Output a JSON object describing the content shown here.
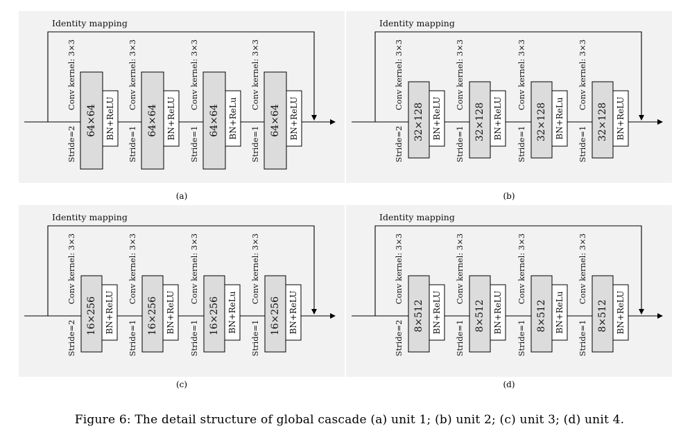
{
  "figure": {
    "caption": "Figure 6: The detail structure of global cascade (a) unit 1; (b) unit 2; (c) unit 3; (d) unit 4.",
    "identity_label": "Identity mapping",
    "conv_label": "Conv kernel: 3×3",
    "panels": [
      {
        "label": "(a)",
        "blocks": [
          {
            "stride": "Stride=2",
            "size": "64×64",
            "bn": "BN+ReLU"
          },
          {
            "stride": "Stride=1",
            "size": "64×64",
            "bn": "BN+ReLU"
          },
          {
            "stride": "Stride=1",
            "size": "64×64",
            "bn": "BN+ReLu"
          },
          {
            "stride": "Stride=1",
            "size": "64×64",
            "bn": "BN+ReLU"
          }
        ]
      },
      {
        "label": "(b)",
        "blocks": [
          {
            "stride": "Stride=2",
            "size": "32×128",
            "bn": "BN+ReLU"
          },
          {
            "stride": "Stride=1",
            "size": "32×128",
            "bn": "BN+ReLU"
          },
          {
            "stride": "Stride=1",
            "size": "32×128",
            "bn": "BN+ReLu"
          },
          {
            "stride": "Stride=1",
            "size": "32×128",
            "bn": "BN+ReLU"
          }
        ]
      },
      {
        "label": "(c)",
        "blocks": [
          {
            "stride": "Stride=2",
            "size": "16×256",
            "bn": "BN+ReLU"
          },
          {
            "stride": "Stride=1",
            "size": "16×256",
            "bn": "BN+ReLU"
          },
          {
            "stride": "Stride=1",
            "size": "16×256",
            "bn": "BN+ReLu"
          },
          {
            "stride": "Stride=1",
            "size": "16×256",
            "bn": "BN+ReLU"
          }
        ]
      },
      {
        "label": "(d)",
        "blocks": [
          {
            "stride": "Stride=2",
            "size": "8×512",
            "bn": "BN+ReLU"
          },
          {
            "stride": "Stride=1",
            "size": "8×512",
            "bn": "BN+ReLU"
          },
          {
            "stride": "Stride=1",
            "size": "8×512",
            "bn": "BN+ReLu"
          },
          {
            "stride": "Stride=1",
            "size": "8×512",
            "bn": "BN+ReLU"
          }
        ]
      }
    ]
  }
}
